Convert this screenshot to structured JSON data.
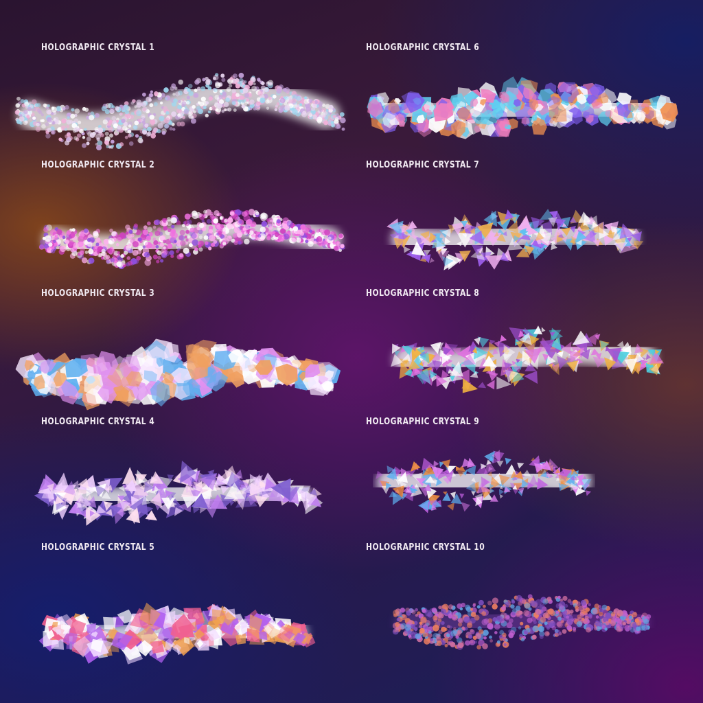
{
  "brushes": [
    {
      "label": "Holographic Crystal 1",
      "palette": [
        "#ffffff",
        "#e8d6f0",
        "#c9a6e0",
        "#9fd8f0",
        "#f0b0d8"
      ]
    },
    {
      "label": "Holographic Crystal 2",
      "palette": [
        "#ffffff",
        "#f070e0",
        "#d040c0",
        "#ffb0f0",
        "#9050e0"
      ]
    },
    {
      "label": "Holographic Crystal 3",
      "palette": [
        "#ffffff",
        "#f8e8ff",
        "#e090f0",
        "#60b0f0",
        "#f0a060"
      ]
    },
    {
      "label": "Holographic Crystal 4",
      "palette": [
        "#ffffff",
        "#f0d0ff",
        "#c080f0",
        "#8060d0",
        "#ffe0f0"
      ]
    },
    {
      "label": "Holographic Crystal 5",
      "palette": [
        "#ffffff",
        "#f0d8ff",
        "#b060f0",
        "#f06090",
        "#f0a050"
      ]
    },
    {
      "label": "Holographic Crystal 6",
      "palette": [
        "#ffffff",
        "#f080c0",
        "#60d0f0",
        "#f09050",
        "#8060f0"
      ]
    },
    {
      "label": "Holographic Crystal 7",
      "palette": [
        "#ffffff",
        "#f0b0f0",
        "#a060f0",
        "#60c0f0",
        "#f0b050"
      ]
    },
    {
      "label": "Holographic Crystal 8",
      "palette": [
        "#ffffff",
        "#e070e0",
        "#50d0e0",
        "#f0b040",
        "#a050d0"
      ]
    },
    {
      "label": "Holographic Crystal 9",
      "palette": [
        "#ffffff",
        "#e080f0",
        "#60b0f0",
        "#f09040",
        "#c060e0"
      ]
    },
    {
      "label": "Holographic Crystal 10",
      "palette": [
        "#c060d0",
        "#8050c0",
        "#f08060",
        "#60a0e0",
        "#d070a0"
      ]
    }
  ]
}
